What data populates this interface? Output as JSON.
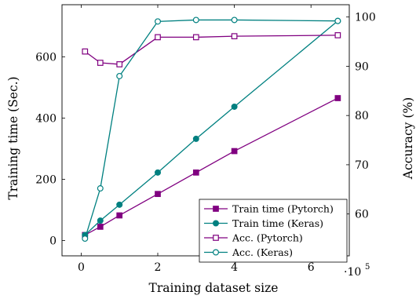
{
  "chart_data": {
    "type": "line",
    "xlabel": "Training dataset size",
    "x_exponent_label": "·10",
    "x_exponent_power": "5",
    "ylabel_left": "Training time (Sec.)",
    "ylabel_right": "Accuracy (%)",
    "xlim": [
      -0.5,
      7.0
    ],
    "ylim_left": [
      -50,
      770
    ],
    "ylim_right": [
      51.5,
      102.5
    ],
    "x_ticks": [
      0,
      2,
      4,
      6
    ],
    "x_tick_labels": [
      "0",
      "2",
      "4",
      "6"
    ],
    "y_left_ticks": [
      0,
      200,
      400,
      600
    ],
    "y_left_tick_labels": [
      "0",
      "200",
      "400",
      "600"
    ],
    "y_right_ticks": [
      60,
      70,
      80,
      90,
      100
    ],
    "y_right_tick_labels": [
      "60",
      "70",
      "80",
      "90",
      "100"
    ],
    "legend_position": "lower-right",
    "series": [
      {
        "name": "Train time (Pytorch)",
        "axis": "left",
        "color": "#800080",
        "marker": "square-filled",
        "x": [
          0.1,
          0.5,
          1,
          2,
          3,
          4,
          6.7
        ],
        "values": [
          18,
          45,
          82,
          152,
          222,
          292,
          465
        ]
      },
      {
        "name": "Train time (Keras)",
        "axis": "left",
        "color": "#008080",
        "marker": "circle-filled",
        "x": [
          0.1,
          0.5,
          1,
          2,
          3,
          4,
          6.7
        ],
        "values": [
          18,
          65,
          117,
          222,
          332,
          437,
          717
        ]
      },
      {
        "name": "Acc. (Pytorch)",
        "axis": "right",
        "color": "#800080",
        "marker": "square-open",
        "x": [
          0.1,
          0.5,
          1,
          2,
          3,
          4,
          6.7
        ],
        "values": [
          93.0,
          90.7,
          90.4,
          95.9,
          95.9,
          96.1,
          96.3
        ]
      },
      {
        "name": "Acc. (Keras)",
        "axis": "right",
        "color": "#008080",
        "marker": "circle-open",
        "x": [
          0.1,
          0.5,
          1,
          2,
          3,
          4,
          6.7
        ],
        "values": [
          55.0,
          65.2,
          88.0,
          99.1,
          99.4,
          99.4,
          99.2
        ]
      }
    ]
  }
}
